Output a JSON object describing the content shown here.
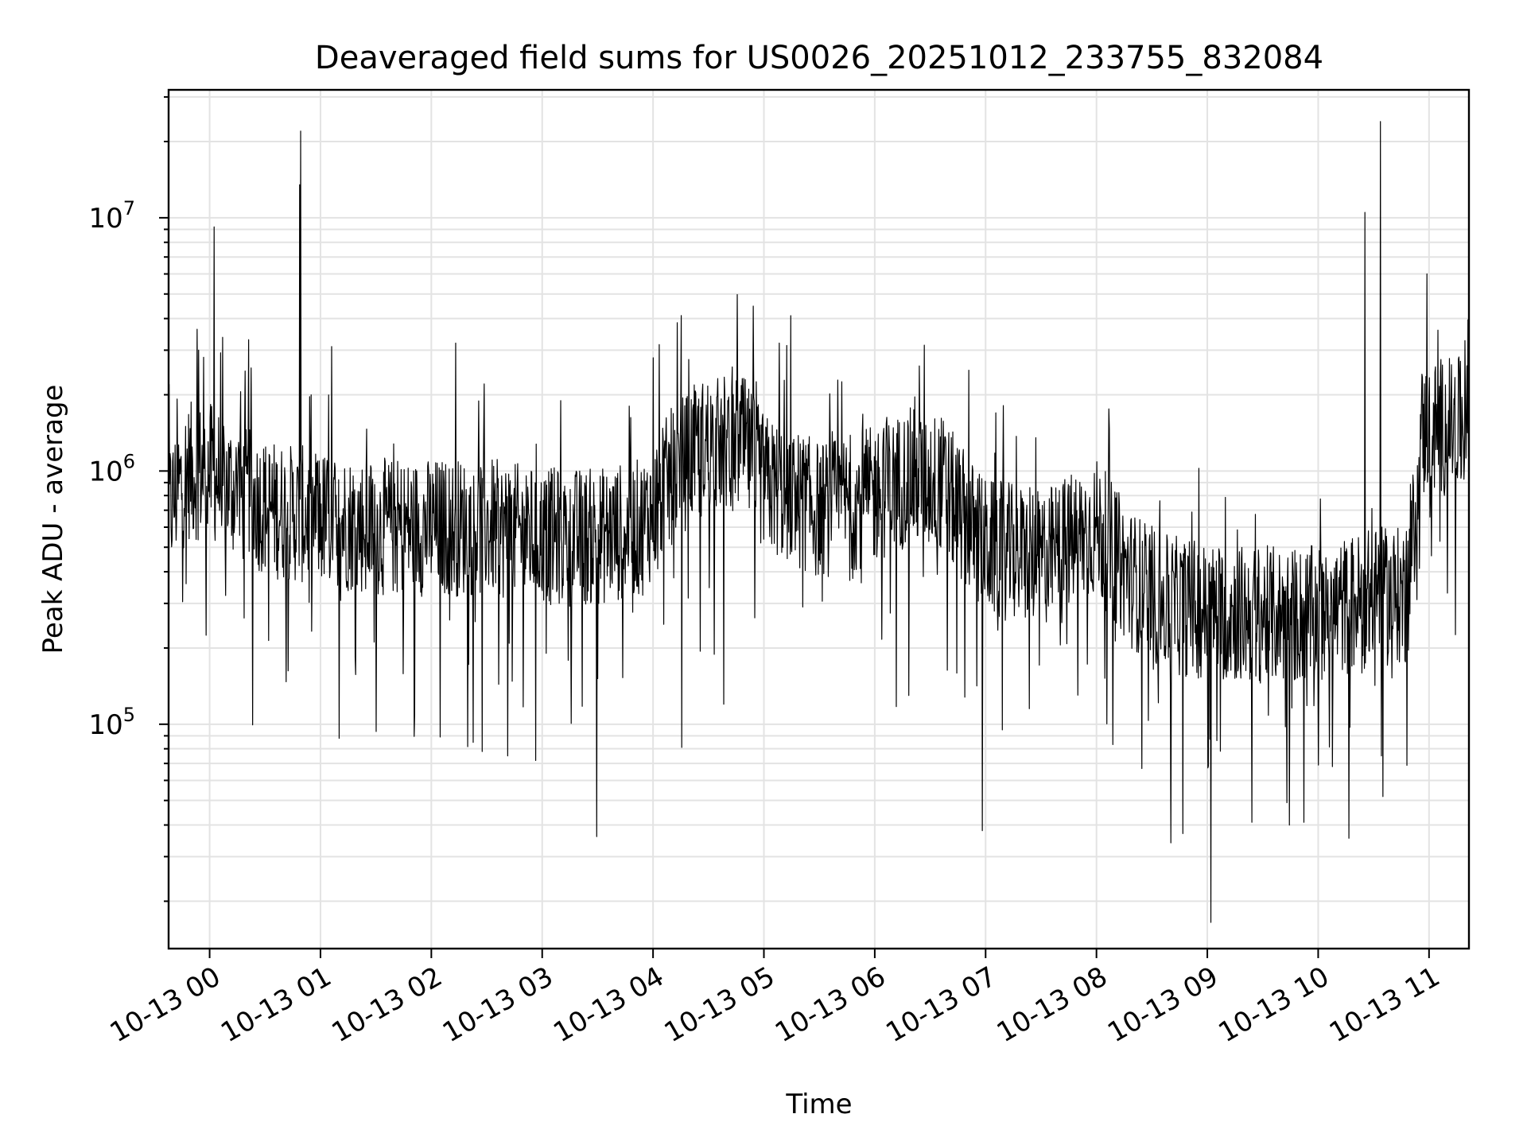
{
  "chart_data": {
    "type": "line",
    "title": "Deaveraged field sums for US0026_20251012_233755_832084",
    "xlabel": "Time",
    "ylabel": "Peak ADU - average",
    "yscale": "log",
    "grid": true,
    "xlim_hours": [
      -0.37,
      11.36
    ],
    "ylim": [
      13000,
      32000000
    ],
    "x_ticks": [
      {
        "hour": 0,
        "label": "10-13 00"
      },
      {
        "hour": 1,
        "label": "10-13 01"
      },
      {
        "hour": 2,
        "label": "10-13 02"
      },
      {
        "hour": 3,
        "label": "10-13 03"
      },
      {
        "hour": 4,
        "label": "10-13 04"
      },
      {
        "hour": 5,
        "label": "10-13 05"
      },
      {
        "hour": 6,
        "label": "10-13 06"
      },
      {
        "hour": 7,
        "label": "10-13 07"
      },
      {
        "hour": 8,
        "label": "10-13 08"
      },
      {
        "hour": 9,
        "label": "10-13 09"
      },
      {
        "hour": 10,
        "label": "10-13 10"
      },
      {
        "hour": 11,
        "label": "10-13 11"
      }
    ],
    "y_ticks": [
      {
        "value": 100000,
        "base": "10",
        "exp": "5"
      },
      {
        "value": 1000000,
        "base": "10",
        "exp": "6"
      },
      {
        "value": 10000000,
        "base": "10",
        "exp": "7"
      }
    ],
    "series": [
      {
        "name": "Peak ADU - average",
        "color": "#000000",
        "baseline": {
          "hours": [
            -0.37,
            -0.2,
            0.0,
            0.3,
            0.6,
            1.0,
            1.5,
            2.0,
            2.5,
            3.0,
            3.5,
            3.9,
            4.2,
            4.5,
            4.8,
            5.0,
            5.5,
            6.0,
            6.3,
            6.6,
            6.8,
            7.0,
            7.5,
            8.0,
            8.3,
            8.6,
            9.0,
            9.5,
            10.0,
            10.5,
            10.8,
            10.85,
            10.92,
            11.1,
            11.36
          ],
          "values": [
            700000,
            1000000,
            1000000,
            800000,
            700000,
            650000,
            600000,
            600000,
            600000,
            550000,
            550000,
            600000,
            1000000,
            1300000,
            1300000,
            900000,
            700000,
            800000,
            950000,
            900000,
            650000,
            500000,
            450000,
            600000,
            380000,
            300000,
            280000,
            270000,
            270000,
            320000,
            320000,
            500000,
            1400000,
            1500000,
            1500000
          ]
        },
        "peaks": [
          {
            "hour": 0.04,
            "value": 9200000
          },
          {
            "hour": 0.82,
            "value": 22000000
          },
          {
            "hour": 0.81,
            "value": 13500000
          },
          {
            "hour": -0.1,
            "value": 3000000
          },
          {
            "hour": 0.35,
            "value": 3300000
          },
          {
            "hour": 1.1,
            "value": 3100000
          },
          {
            "hour": 2.22,
            "value": 3200000
          },
          {
            "hour": 4.0,
            "value": 2800000
          },
          {
            "hour": 5.14,
            "value": 3200000
          },
          {
            "hour": 6.4,
            "value": 2600000
          },
          {
            "hour": 6.85,
            "value": 2500000
          },
          {
            "hour": 10.42,
            "value": 10500000
          },
          {
            "hour": 10.56,
            "value": 24000000
          },
          {
            "hour": 10.98,
            "value": 6000000
          },
          {
            "hour": 11.08,
            "value": 3600000
          }
        ],
        "dips": [
          {
            "hour": 1.17,
            "value": 88000
          },
          {
            "hour": 2.08,
            "value": 89000
          },
          {
            "hour": 2.46,
            "value": 78000
          },
          {
            "hour": 2.69,
            "value": 75000
          },
          {
            "hour": 3.49,
            "value": 36000
          },
          {
            "hour": 4.26,
            "value": 81000
          },
          {
            "hour": 4.64,
            "value": 120000
          },
          {
            "hour": 6.97,
            "value": 38000
          },
          {
            "hour": 7.15,
            "value": 95000
          },
          {
            "hour": 8.67,
            "value": 34000
          },
          {
            "hour": 8.78,
            "value": 37000
          },
          {
            "hour": 9.03,
            "value": 16500
          },
          {
            "hour": 9.4,
            "value": 41000
          },
          {
            "hour": 9.72,
            "value": 49000
          },
          {
            "hour": 9.87,
            "value": 41000
          },
          {
            "hour": 10.13,
            "value": 68000
          }
        ]
      }
    ]
  }
}
